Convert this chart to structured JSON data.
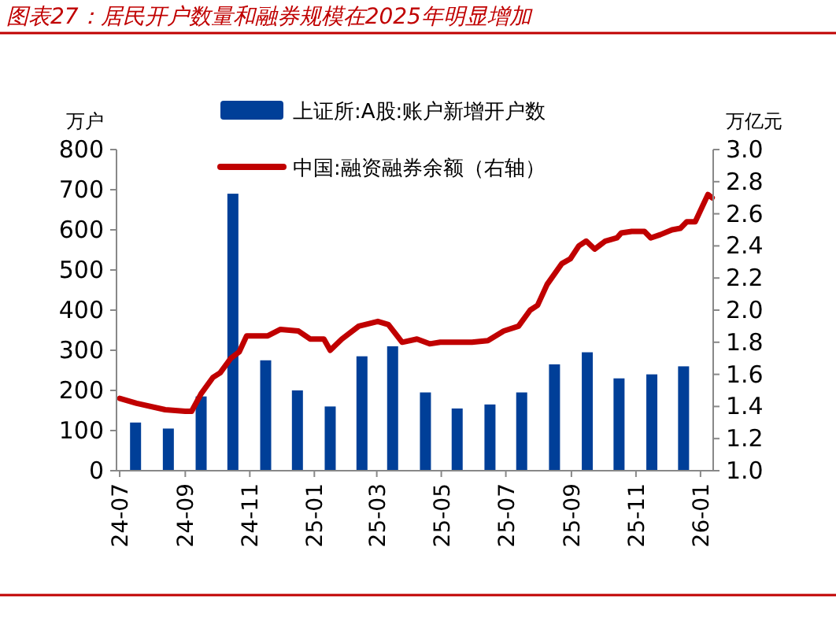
{
  "chart_data": {
    "type": "bar",
    "title": "图表27：居民开户数量和融券规模在2025年明显增加",
    "ylabel": "万户",
    "y2label": "万亿元",
    "xlim": [
      "2024-06-28",
      "2026-01-13"
    ],
    "xticks": [
      {
        "value": "2024-07-01",
        "label": "24-07"
      },
      {
        "value": "2024-09-01",
        "label": "24-09"
      },
      {
        "value": "2024-11-01",
        "label": "24-11"
      },
      {
        "value": "2025-01-01",
        "label": "25-01"
      },
      {
        "value": "2025-03-01",
        "label": "25-03"
      },
      {
        "value": "2025-05-01",
        "label": "25-05"
      },
      {
        "value": "2025-07-01",
        "label": "25-07"
      },
      {
        "value": "2025-09-01",
        "label": "25-09"
      },
      {
        "value": "2025-11-01",
        "label": "25-11"
      },
      {
        "value": "2026-01-01",
        "label": "26-01"
      }
    ],
    "ylim": [
      0,
      800
    ],
    "yticks": [
      0,
      100,
      200,
      300,
      400,
      500,
      600,
      700,
      800
    ],
    "y2lim": [
      1.0,
      3.0
    ],
    "y2ticks": [
      {
        "value": 1,
        "label": "1.0"
      },
      {
        "value": 1.2,
        "label": "1.2"
      },
      {
        "value": 1.4,
        "label": "1.4"
      },
      {
        "value": 1.6,
        "label": "1.6"
      },
      {
        "value": 1.8,
        "label": "1.8"
      },
      {
        "value": 2,
        "label": "2.0"
      },
      {
        "value": 2.2,
        "label": "2.2"
      },
      {
        "value": 2.4,
        "label": "2.4"
      },
      {
        "value": 2.6,
        "label": "2.6"
      },
      {
        "value": 2.8,
        "label": "2.8"
      },
      {
        "value": 3,
        "label": "3.0"
      }
    ],
    "grid": false,
    "legend": "top",
    "series": [
      {
        "name": "上证所:A股:账户新增开户数",
        "color": "#003f98",
        "x": [
          "2024-07-16",
          "2024-08-16",
          "2024-09-16",
          "2024-10-16",
          "2024-11-16",
          "2024-12-16",
          "2025-01-16",
          "2025-02-15",
          "2025-03-16",
          "2025-04-16",
          "2025-05-16",
          "2025-06-16",
          "2025-07-16",
          "2025-08-16",
          "2025-09-16",
          "2025-10-16",
          "2025-11-16",
          "2025-12-16"
        ],
        "values": [
          120,
          105,
          185,
          690,
          275,
          200,
          160,
          285,
          310,
          195,
          155,
          165,
          195,
          265,
          295,
          230,
          240,
          260
        ]
      },
      {
        "name": "中国:融资融券余额（右轴）",
        "type": "line",
        "axis": "y2",
        "color": "#c00000",
        "x": [
          "2024-07-01",
          "2024-07-17",
          "2024-08-13",
          "2024-09-01",
          "2024-09-07",
          "2024-09-16",
          "2024-09-27",
          "2024-10-04",
          "2024-10-14",
          "2024-10-22",
          "2024-10-29",
          "2024-11-18",
          "2024-11-30",
          "2024-12-17",
          "2024-12-28",
          "2025-01-10",
          "2025-01-16",
          "2025-01-27",
          "2025-02-12",
          "2025-03-02",
          "2025-03-12",
          "2025-03-25",
          "2025-04-08",
          "2025-04-20",
          "2025-04-30",
          "2025-05-30",
          "2025-06-14",
          "2025-06-29",
          "2025-07-13",
          "2025-07-24",
          "2025-07-31",
          "2025-08-09",
          "2025-08-23",
          "2025-08-31",
          "2025-09-08",
          "2025-09-15",
          "2025-09-23",
          "2025-10-03",
          "2025-10-14",
          "2025-10-18",
          "2025-10-28",
          "2025-11-09",
          "2025-11-15",
          "2025-11-24",
          "2025-12-05",
          "2025-12-13",
          "2025-12-19",
          "2025-12-27",
          "2026-01-08",
          "2026-01-12"
        ],
        "values": [
          1.45,
          1.42,
          1.38,
          1.37,
          1.37,
          1.48,
          1.58,
          1.61,
          1.7,
          1.74,
          1.84,
          1.84,
          1.88,
          1.87,
          1.82,
          1.82,
          1.75,
          1.82,
          1.9,
          1.93,
          1.91,
          1.8,
          1.82,
          1.79,
          1.8,
          1.8,
          1.81,
          1.87,
          1.9,
          2.0,
          2.03,
          2.16,
          2.29,
          2.32,
          2.4,
          2.43,
          2.38,
          2.43,
          2.45,
          2.48,
          2.49,
          2.49,
          2.45,
          2.47,
          2.5,
          2.51,
          2.55,
          2.55,
          2.72,
          2.7
        ]
      }
    ]
  }
}
